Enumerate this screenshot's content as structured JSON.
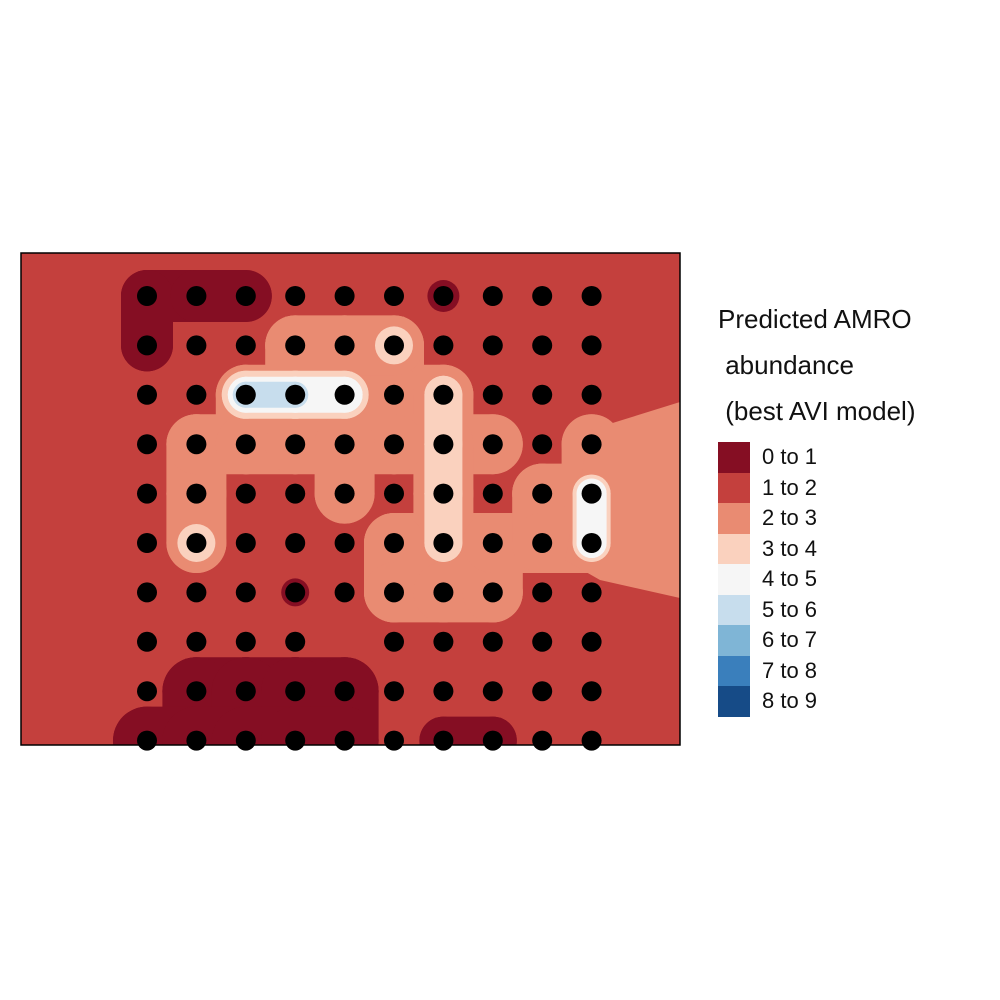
{
  "legend": {
    "title_lines": [
      "Predicted AMRO",
      " abundance",
      " (best AVI model)"
    ],
    "items": [
      {
        "label": "0 to 1",
        "color": "#850E23"
      },
      {
        "label": "1 to 2",
        "color": "#C4403D"
      },
      {
        "label": "2 to 3",
        "color": "#E98B72"
      },
      {
        "label": "3 to 4",
        "color": "#FAD1BE"
      },
      {
        "label": "4 to 5",
        "color": "#F6F6F6"
      },
      {
        "label": "5 to 6",
        "color": "#C7DDED"
      },
      {
        "label": "6 to 7",
        "color": "#7FB5D6"
      },
      {
        "label": "7 to 8",
        "color": "#3A7FBC"
      },
      {
        "label": "8 to 9",
        "color": "#164B87"
      }
    ]
  },
  "map": {
    "grid_rows": 10,
    "grid_cols": 10,
    "point_color": "#000000",
    "background_class": 1,
    "points": [
      [
        0,
        0,
        0
      ],
      [
        1,
        0,
        0
      ],
      [
        2,
        0,
        0
      ],
      [
        3,
        0,
        1
      ],
      [
        4,
        0,
        1
      ],
      [
        5,
        0,
        1
      ],
      [
        6,
        0,
        0
      ],
      [
        7,
        0,
        1
      ],
      [
        8,
        0,
        1
      ],
      [
        9,
        0,
        1
      ],
      [
        0,
        1,
        0
      ],
      [
        1,
        1,
        1
      ],
      [
        2,
        1,
        1
      ],
      [
        3,
        1,
        1
      ],
      [
        4,
        1,
        1
      ],
      [
        5,
        1,
        3
      ],
      [
        6,
        1,
        1
      ],
      [
        7,
        1,
        1
      ],
      [
        8,
        1,
        1
      ],
      [
        9,
        1,
        1
      ],
      [
        0,
        2,
        1
      ],
      [
        1,
        2,
        1
      ],
      [
        2,
        2,
        5
      ],
      [
        3,
        2,
        5
      ],
      [
        4,
        2,
        4
      ],
      [
        5,
        2,
        2
      ],
      [
        6,
        2,
        3
      ],
      [
        7,
        2,
        1
      ],
      [
        8,
        2,
        1
      ],
      [
        9,
        2,
        1
      ],
      [
        0,
        3,
        1
      ],
      [
        1,
        3,
        1
      ],
      [
        2,
        3,
        1
      ],
      [
        3,
        3,
        1
      ],
      [
        4,
        3,
        1
      ],
      [
        5,
        3,
        1
      ],
      [
        6,
        3,
        3
      ],
      [
        7,
        3,
        2
      ],
      [
        8,
        3,
        1
      ],
      [
        9,
        3,
        1
      ],
      [
        0,
        4,
        1
      ],
      [
        1,
        4,
        2
      ],
      [
        2,
        4,
        1
      ],
      [
        3,
        4,
        1
      ],
      [
        4,
        4,
        1
      ],
      [
        5,
        4,
        1
      ],
      [
        6,
        4,
        3
      ],
      [
        7,
        4,
        1
      ],
      [
        8,
        4,
        1
      ],
      [
        9,
        4,
        4
      ],
      [
        0,
        5,
        1
      ],
      [
        1,
        5,
        3
      ],
      [
        2,
        5,
        1
      ],
      [
        3,
        5,
        1
      ],
      [
        4,
        5,
        1
      ],
      [
        5,
        5,
        2
      ],
      [
        6,
        5,
        3
      ],
      [
        7,
        5,
        2
      ],
      [
        8,
        5,
        1
      ],
      [
        9,
        5,
        4
      ],
      [
        0,
        6,
        1
      ],
      [
        1,
        6,
        1
      ],
      [
        2,
        6,
        1
      ],
      [
        3,
        6,
        0
      ],
      [
        4,
        6,
        1
      ],
      [
        5,
        6,
        2
      ],
      [
        6,
        6,
        2
      ],
      [
        7,
        6,
        2
      ],
      [
        8,
        6,
        1
      ],
      [
        9,
        6,
        1
      ],
      [
        0,
        7,
        1
      ],
      [
        1,
        7,
        1
      ],
      [
        2,
        7,
        1
      ],
      [
        3,
        7,
        1
      ],
      [
        5,
        7,
        1
      ],
      [
        6,
        7,
        1
      ],
      [
        7,
        7,
        1
      ],
      [
        8,
        7,
        1
      ],
      [
        9,
        7,
        1
      ],
      [
        0,
        8,
        1
      ],
      [
        1,
        8,
        0
      ],
      [
        2,
        8,
        0
      ],
      [
        3,
        8,
        0
      ],
      [
        4,
        8,
        0
      ],
      [
        5,
        8,
        1
      ],
      [
        6,
        8,
        1
      ],
      [
        7,
        8,
        1
      ],
      [
        8,
        8,
        1
      ],
      [
        9,
        8,
        1
      ],
      [
        0,
        9,
        0
      ],
      [
        1,
        9,
        0
      ],
      [
        2,
        9,
        0
      ],
      [
        3,
        9,
        0
      ],
      [
        4,
        9,
        0
      ],
      [
        5,
        9,
        1
      ],
      [
        6,
        9,
        0
      ],
      [
        7,
        9,
        0
      ],
      [
        8,
        9,
        1
      ],
      [
        9,
        9,
        1
      ]
    ]
  }
}
